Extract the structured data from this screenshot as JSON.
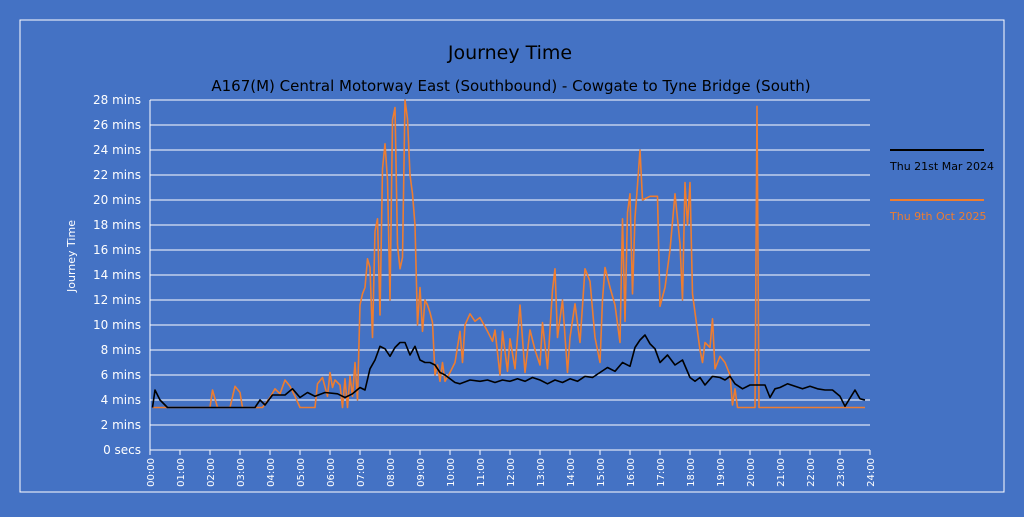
{
  "colors": {
    "background": "#4472c4",
    "frame": "#ffffff",
    "text": "#000000",
    "grid": "#ffffff",
    "series_2024": "#000000",
    "series_2025": "#ed7d31"
  },
  "chart_data": {
    "type": "line",
    "title": "Journey Time",
    "subtitle": "A167(M) Central Motorway East (Southbound) - Cowgate to Tyne Bridge (South)",
    "ylabel": "Journey Time",
    "xlabel": "",
    "ylim": [
      0,
      28
    ],
    "xlim": [
      "00:00",
      "24:00"
    ],
    "grid": "horizontal",
    "legend_position": "right",
    "y_ticks": [
      {
        "value": 0,
        "label": "0 secs"
      },
      {
        "value": 2,
        "label": "2 mins"
      },
      {
        "value": 4,
        "label": "4 mins"
      },
      {
        "value": 6,
        "label": "6 mins"
      },
      {
        "value": 8,
        "label": "8 mins"
      },
      {
        "value": 10,
        "label": "10 mins"
      },
      {
        "value": 12,
        "label": "12 mins"
      },
      {
        "value": 14,
        "label": "14 mins"
      },
      {
        "value": 16,
        "label": "16 mins"
      },
      {
        "value": 18,
        "label": "18 mins"
      },
      {
        "value": 20,
        "label": "20 mins"
      },
      {
        "value": 22,
        "label": "22 mins"
      },
      {
        "value": 24,
        "label": "24 mins"
      },
      {
        "value": 26,
        "label": "26 mins"
      },
      {
        "value": 28,
        "label": "28 mins"
      }
    ],
    "x_ticks": [
      "00:00",
      "01:00",
      "02:00",
      "03:00",
      "04:00",
      "05:00",
      "06:00",
      "07:00",
      "08:00",
      "09:00",
      "10:00",
      "11:00",
      "12:00",
      "13:00",
      "14:00",
      "15:00",
      "16:00",
      "17:00",
      "18:00",
      "19:00",
      "20:00",
      "21:00",
      "22:00",
      "23:00",
      "24:00"
    ],
    "series": [
      {
        "name": "Thu 21st Mar 2024",
        "color": "#000000",
        "points": [
          [
            "00:05",
            3.4
          ],
          [
            "00:10",
            4.8
          ],
          [
            "00:20",
            4.0
          ],
          [
            "00:35",
            3.4
          ],
          [
            "01:00",
            3.4
          ],
          [
            "02:00",
            3.4
          ],
          [
            "03:00",
            3.4
          ],
          [
            "03:30",
            3.4
          ],
          [
            "03:40",
            4.0
          ],
          [
            "03:50",
            3.6
          ],
          [
            "04:05",
            4.4
          ],
          [
            "04:30",
            4.4
          ],
          [
            "04:45",
            4.9
          ],
          [
            "05:00",
            4.2
          ],
          [
            "05:15",
            4.6
          ],
          [
            "05:30",
            4.3
          ],
          [
            "05:50",
            4.6
          ],
          [
            "06:15",
            4.5
          ],
          [
            "06:30",
            4.2
          ],
          [
            "06:45",
            4.5
          ],
          [
            "07:00",
            5.0
          ],
          [
            "07:10",
            4.8
          ],
          [
            "07:20",
            6.5
          ],
          [
            "07:30",
            7.2
          ],
          [
            "07:40",
            8.3
          ],
          [
            "07:50",
            8.1
          ],
          [
            "08:00",
            7.5
          ],
          [
            "08:10",
            8.2
          ],
          [
            "08:20",
            8.6
          ],
          [
            "08:30",
            8.6
          ],
          [
            "08:40",
            7.6
          ],
          [
            "08:50",
            8.3
          ],
          [
            "09:00",
            7.2
          ],
          [
            "09:10",
            7.0
          ],
          [
            "09:20",
            7.0
          ],
          [
            "09:30",
            6.8
          ],
          [
            "09:40",
            6.2
          ],
          [
            "09:50",
            6.0
          ],
          [
            "10:00",
            5.7
          ],
          [
            "10:10",
            5.4
          ],
          [
            "10:20",
            5.3
          ],
          [
            "10:40",
            5.6
          ],
          [
            "11:00",
            5.5
          ],
          [
            "11:15",
            5.6
          ],
          [
            "11:30",
            5.4
          ],
          [
            "11:45",
            5.6
          ],
          [
            "12:00",
            5.5
          ],
          [
            "12:15",
            5.7
          ],
          [
            "12:30",
            5.5
          ],
          [
            "12:45",
            5.8
          ],
          [
            "13:00",
            5.6
          ],
          [
            "13:15",
            5.3
          ],
          [
            "13:30",
            5.6
          ],
          [
            "13:45",
            5.4
          ],
          [
            "14:00",
            5.7
          ],
          [
            "14:15",
            5.5
          ],
          [
            "14:30",
            5.9
          ],
          [
            "14:45",
            5.8
          ],
          [
            "15:00",
            6.2
          ],
          [
            "15:15",
            6.6
          ],
          [
            "15:30",
            6.3
          ],
          [
            "15:45",
            7.0
          ],
          [
            "16:00",
            6.7
          ],
          [
            "16:10",
            8.2
          ],
          [
            "16:20",
            8.8
          ],
          [
            "16:30",
            9.2
          ],
          [
            "16:40",
            8.5
          ],
          [
            "16:50",
            8.1
          ],
          [
            "17:00",
            7.0
          ],
          [
            "17:15",
            7.6
          ],
          [
            "17:30",
            6.8
          ],
          [
            "17:45",
            7.2
          ],
          [
            "18:00",
            5.8
          ],
          [
            "18:10",
            5.5
          ],
          [
            "18:20",
            5.8
          ],
          [
            "18:30",
            5.2
          ],
          [
            "18:45",
            5.9
          ],
          [
            "19:00",
            5.8
          ],
          [
            "19:10",
            5.6
          ],
          [
            "19:20",
            5.9
          ],
          [
            "19:30",
            5.3
          ],
          [
            "19:45",
            4.9
          ],
          [
            "20:00",
            5.2
          ],
          [
            "20:30",
            5.2
          ],
          [
            "20:40",
            4.2
          ],
          [
            "20:50",
            4.9
          ],
          [
            "21:00",
            5.0
          ],
          [
            "21:15",
            5.3
          ],
          [
            "21:30",
            5.1
          ],
          [
            "21:45",
            4.9
          ],
          [
            "22:00",
            5.1
          ],
          [
            "22:15",
            4.9
          ],
          [
            "22:30",
            4.8
          ],
          [
            "22:45",
            4.8
          ],
          [
            "23:00",
            4.3
          ],
          [
            "23:10",
            3.5
          ],
          [
            "23:30",
            4.8
          ],
          [
            "23:40",
            4.1
          ],
          [
            "23:50",
            4.0
          ]
        ]
      },
      {
        "name": "Thu 9th Oct 2025",
        "color": "#ed7d31",
        "points": [
          [
            "00:05",
            3.4
          ],
          [
            "02:00",
            3.4
          ],
          [
            "02:05",
            4.8
          ],
          [
            "02:15",
            3.4
          ],
          [
            "02:40",
            3.4
          ],
          [
            "02:50",
            5.1
          ],
          [
            "03:00",
            4.6
          ],
          [
            "03:05",
            3.4
          ],
          [
            "03:30",
            3.4
          ],
          [
            "03:45",
            3.4
          ],
          [
            "04:00",
            4.2
          ],
          [
            "04:10",
            4.9
          ],
          [
            "04:20",
            4.5
          ],
          [
            "04:30",
            5.6
          ],
          [
            "04:40",
            5.1
          ],
          [
            "04:50",
            4.3
          ],
          [
            "05:00",
            3.4
          ],
          [
            "05:30",
            3.4
          ],
          [
            "05:35",
            5.3
          ],
          [
            "05:45",
            5.8
          ],
          [
            "05:55",
            4.3
          ],
          [
            "06:00",
            6.2
          ],
          [
            "06:05",
            5.0
          ],
          [
            "06:10",
            5.6
          ],
          [
            "06:20",
            5.2
          ],
          [
            "06:25",
            3.4
          ],
          [
            "06:30",
            5.7
          ],
          [
            "06:35",
            3.4
          ],
          [
            "06:40",
            5.9
          ],
          [
            "06:45",
            4.3
          ],
          [
            "06:50",
            7.0
          ],
          [
            "06:55",
            4.0
          ],
          [
            "07:00",
            11.6
          ],
          [
            "07:05",
            12.5
          ],
          [
            "07:10",
            13.0
          ],
          [
            "07:15",
            15.3
          ],
          [
            "07:20",
            14.6
          ],
          [
            "07:25",
            9.0
          ],
          [
            "07:30",
            17.5
          ],
          [
            "07:35",
            18.5
          ],
          [
            "07:40",
            10.8
          ],
          [
            "07:45",
            22.5
          ],
          [
            "07:50",
            24.5
          ],
          [
            "07:55",
            21.6
          ],
          [
            "08:00",
            12.0
          ],
          [
            "08:05",
            26.4
          ],
          [
            "08:10",
            27.4
          ],
          [
            "08:15",
            16.4
          ],
          [
            "08:20",
            14.5
          ],
          [
            "08:25",
            15.4
          ],
          [
            "08:30",
            28.0
          ],
          [
            "08:35",
            26.5
          ],
          [
            "08:40",
            22.0
          ],
          [
            "08:45",
            20.5
          ],
          [
            "08:50",
            18.0
          ],
          [
            "08:55",
            10.0
          ],
          [
            "09:00",
            13.0
          ],
          [
            "09:05",
            9.5
          ],
          [
            "09:10",
            12.0
          ],
          [
            "09:15",
            11.6
          ],
          [
            "09:20",
            11.0
          ],
          [
            "09:25",
            10.2
          ],
          [
            "09:30",
            6.0
          ],
          [
            "09:35",
            6.8
          ],
          [
            "09:40",
            5.5
          ],
          [
            "09:45",
            7.0
          ],
          [
            "09:50",
            5.5
          ],
          [
            "10:00",
            6.2
          ],
          [
            "10:10",
            7.0
          ],
          [
            "10:20",
            9.5
          ],
          [
            "10:25",
            7.0
          ],
          [
            "10:30",
            10.0
          ],
          [
            "10:40",
            10.9
          ],
          [
            "10:50",
            10.3
          ],
          [
            "11:00",
            10.6
          ],
          [
            "11:15",
            9.5
          ],
          [
            "11:25",
            8.7
          ],
          [
            "11:30",
            9.6
          ],
          [
            "11:40",
            6.0
          ],
          [
            "11:45",
            9.5
          ],
          [
            "11:55",
            6.3
          ],
          [
            "12:00",
            8.9
          ],
          [
            "12:10",
            6.5
          ],
          [
            "12:20",
            11.6
          ],
          [
            "12:30",
            6.2
          ],
          [
            "12:40",
            9.6
          ],
          [
            "12:50",
            8.0
          ],
          [
            "13:00",
            6.8
          ],
          [
            "13:05",
            10.2
          ],
          [
            "13:15",
            6.5
          ],
          [
            "13:25",
            12.8
          ],
          [
            "13:30",
            14.5
          ],
          [
            "13:35",
            9.0
          ],
          [
            "13:45",
            12.0
          ],
          [
            "13:55",
            6.2
          ],
          [
            "14:00",
            9.0
          ],
          [
            "14:10",
            11.7
          ],
          [
            "14:20",
            8.6
          ],
          [
            "14:30",
            14.5
          ],
          [
            "14:40",
            13.5
          ],
          [
            "14:50",
            9.0
          ],
          [
            "15:00",
            7.0
          ],
          [
            "15:05",
            12.0
          ],
          [
            "15:10",
            14.6
          ],
          [
            "15:20",
            13.0
          ],
          [
            "15:30",
            11.6
          ],
          [
            "15:40",
            8.6
          ],
          [
            "15:45",
            18.5
          ],
          [
            "15:50",
            10.3
          ],
          [
            "15:55",
            19.0
          ],
          [
            "16:00",
            20.5
          ],
          [
            "16:05",
            12.5
          ],
          [
            "16:10",
            18.6
          ],
          [
            "16:15",
            21.2
          ],
          [
            "16:20",
            24.0
          ],
          [
            "16:25",
            20.0
          ],
          [
            "16:40",
            20.3
          ],
          [
            "16:55",
            20.3
          ],
          [
            "17:00",
            11.5
          ],
          [
            "17:10",
            13.0
          ],
          [
            "17:20",
            16.0
          ],
          [
            "17:30",
            20.5
          ],
          [
            "17:40",
            16.5
          ],
          [
            "17:45",
            12.0
          ],
          [
            "17:50",
            21.4
          ],
          [
            "17:55",
            18.0
          ],
          [
            "18:00",
            21.4
          ],
          [
            "18:05",
            12.5
          ],
          [
            "18:10",
            11.0
          ],
          [
            "18:20",
            8.0
          ],
          [
            "18:25",
            7.0
          ],
          [
            "18:30",
            8.6
          ],
          [
            "18:40",
            8.2
          ],
          [
            "18:45",
            10.5
          ],
          [
            "18:50",
            6.5
          ],
          [
            "19:00",
            7.5
          ],
          [
            "19:10",
            7.0
          ],
          [
            "19:20",
            6.0
          ],
          [
            "19:25",
            3.6
          ],
          [
            "19:30",
            4.9
          ],
          [
            "19:35",
            3.4
          ],
          [
            "20:00",
            3.4
          ],
          [
            "20:10",
            3.4
          ],
          [
            "20:14",
            27.5
          ],
          [
            "20:18",
            3.4
          ],
          [
            "21:00",
            3.4
          ],
          [
            "22:00",
            3.4
          ],
          [
            "23:00",
            3.4
          ],
          [
            "23:50",
            3.4
          ]
        ]
      }
    ]
  }
}
